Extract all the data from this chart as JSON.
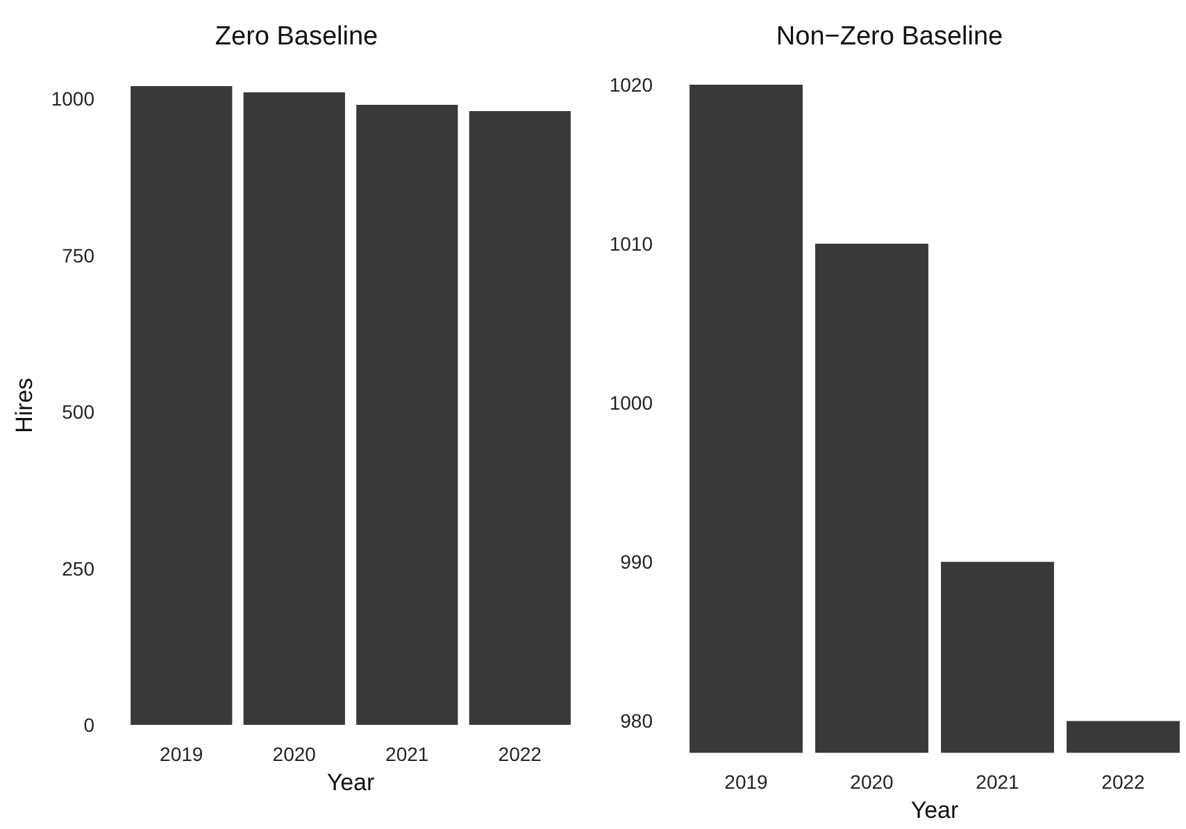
{
  "chart_data": [
    {
      "type": "bar",
      "title": "Zero Baseline",
      "xlabel": "Year",
      "ylabel": "Hires",
      "categories": [
        "2019",
        "2020",
        "2021",
        "2022"
      ],
      "values": [
        1020,
        1010,
        990,
        980
      ],
      "color": "#393939",
      "ylim": [
        0,
        1020
      ],
      "yticks": [
        0,
        250,
        500,
        750,
        1000
      ],
      "grid": false
    },
    {
      "type": "bar",
      "title": "Non−Zero Baseline",
      "xlabel": "Year",
      "categories": [
        "2019",
        "2020",
        "2021",
        "2022"
      ],
      "values": [
        1020,
        1010,
        990,
        980
      ],
      "color": "#393939",
      "ylim": [
        978,
        1020
      ],
      "yticks": [
        980,
        990,
        1000,
        1010,
        1020
      ],
      "grid": false
    }
  ]
}
